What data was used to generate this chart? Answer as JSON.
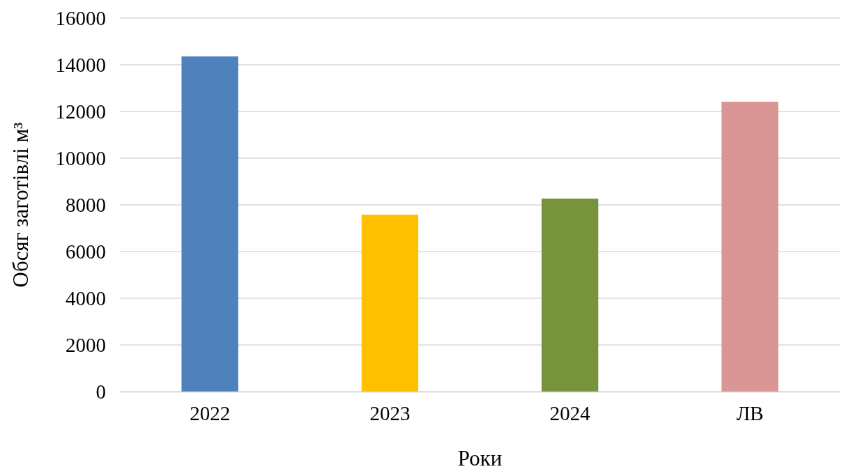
{
  "chart_data": {
    "type": "bar",
    "xlabel": "Роки",
    "ylabel": "Обсяг заготівлі м³",
    "categories": [
      "2022",
      "2023",
      "2024",
      "ЛВ"
    ],
    "values": [
      14360,
      7580,
      8270,
      12420
    ],
    "colors": [
      "#4f81bd",
      "#ffc000",
      "#77933c",
      "#d99694"
    ],
    "ylim": [
      0,
      16000
    ],
    "yticks": [
      0,
      2000,
      4000,
      6000,
      8000,
      10000,
      12000,
      14000,
      16000
    ],
    "grid": "y"
  }
}
